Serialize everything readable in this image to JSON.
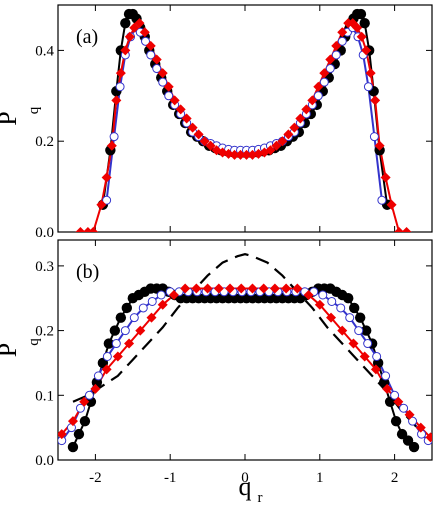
{
  "chart_data": [
    {
      "type": "line",
      "panel_label": "(a)",
      "ylabel": "P",
      "ylabel_sub": "q",
      "xlabel": "",
      "xlim": [
        -2.5,
        2.5
      ],
      "ylim": [
        0.0,
        0.5
      ],
      "y_ticks": [
        "0.0",
        "0.2",
        "0.4"
      ],
      "y_tick_values": [
        0.0,
        0.2,
        0.4
      ],
      "x_tick_values": [
        -2,
        -1,
        0,
        1,
        2
      ],
      "x_tick_labels": [
        "",
        "",
        "",
        "",
        ""
      ],
      "colors": {
        "black": "#000000",
        "blue": "#3333cc",
        "red": "#ee0000",
        "white": "#ffffff"
      },
      "series": [
        {
          "marker": "filled-circle",
          "color": "#000000",
          "x": [
            -1.9,
            -1.8,
            -1.72,
            -1.66,
            -1.6,
            -1.55,
            -1.5,
            -1.45,
            -1.4,
            -1.34,
            -1.28,
            -1.2,
            -1.12,
            -1.04,
            -0.96,
            -0.88,
            -0.8,
            -0.72,
            -0.64,
            -0.56,
            -0.48,
            -0.4,
            -0.32,
            -0.24,
            -0.16,
            -0.08,
            0.0,
            0.08,
            0.16,
            0.24,
            0.32,
            0.4,
            0.48,
            0.56,
            0.64,
            0.72,
            0.8,
            0.88,
            0.96,
            1.04,
            1.12,
            1.2,
            1.28,
            1.34,
            1.4,
            1.45,
            1.5,
            1.55,
            1.6,
            1.66,
            1.72,
            1.8,
            1.9
          ],
          "y": [
            0.06,
            0.18,
            0.31,
            0.4,
            0.46,
            0.48,
            0.48,
            0.47,
            0.45,
            0.43,
            0.4,
            0.37,
            0.34,
            0.31,
            0.28,
            0.26,
            0.24,
            0.22,
            0.21,
            0.2,
            0.19,
            0.185,
            0.18,
            0.178,
            0.176,
            0.175,
            0.175,
            0.175,
            0.176,
            0.178,
            0.18,
            0.185,
            0.19,
            0.2,
            0.21,
            0.22,
            0.24,
            0.26,
            0.28,
            0.31,
            0.34,
            0.37,
            0.4,
            0.43,
            0.45,
            0.47,
            0.48,
            0.48,
            0.46,
            0.4,
            0.31,
            0.18,
            0.06
          ]
        },
        {
          "marker": "open-circle",
          "color": "#3333cc",
          "x": [
            -1.85,
            -1.75,
            -1.67,
            -1.6,
            -1.53,
            -1.46,
            -1.4,
            -1.33,
            -1.26,
            -1.18,
            -1.1,
            -1.02,
            -0.94,
            -0.86,
            -0.78,
            -0.7,
            -0.62,
            -0.54,
            -0.46,
            -0.38,
            -0.3,
            -0.22,
            -0.14,
            -0.06,
            0.02,
            0.1,
            0.18,
            0.26,
            0.34,
            0.42,
            0.5,
            0.58,
            0.66,
            0.74,
            0.82,
            0.9,
            0.98,
            1.06,
            1.14,
            1.22,
            1.3,
            1.37,
            1.44,
            1.51,
            1.58,
            1.65,
            1.73,
            1.83
          ],
          "y": [
            0.07,
            0.21,
            0.32,
            0.39,
            0.43,
            0.45,
            0.44,
            0.42,
            0.39,
            0.36,
            0.33,
            0.3,
            0.28,
            0.26,
            0.24,
            0.22,
            0.21,
            0.2,
            0.195,
            0.19,
            0.185,
            0.182,
            0.18,
            0.18,
            0.18,
            0.18,
            0.182,
            0.185,
            0.19,
            0.195,
            0.2,
            0.21,
            0.22,
            0.24,
            0.26,
            0.28,
            0.3,
            0.33,
            0.36,
            0.39,
            0.42,
            0.44,
            0.45,
            0.43,
            0.39,
            0.32,
            0.21,
            0.07
          ]
        },
        {
          "marker": "filled-diamond",
          "color": "#ee0000",
          "x": [
            -2.2,
            -2.1,
            -2.03,
            -1.92,
            -1.85,
            -1.78,
            -1.72,
            -1.66,
            -1.6,
            -1.54,
            -1.48,
            -1.41,
            -1.34,
            -1.26,
            -1.18,
            -1.1,
            -1.02,
            -0.94,
            -0.86,
            -0.78,
            -0.7,
            -0.62,
            -0.54,
            -0.46,
            -0.38,
            -0.3,
            -0.22,
            -0.14,
            -0.06,
            0.02,
            0.1,
            0.18,
            0.26,
            0.34,
            0.42,
            0.5,
            0.58,
            0.66,
            0.74,
            0.82,
            0.9,
            0.98,
            1.06,
            1.14,
            1.22,
            1.3,
            1.38,
            1.44,
            1.5,
            1.56,
            1.62,
            1.68,
            1.74,
            1.8,
            1.88,
            1.96,
            2.06,
            2.16
          ],
          "y": [
            0.0,
            0.0,
            0.0,
            0.06,
            0.12,
            0.19,
            0.29,
            0.35,
            0.4,
            0.43,
            0.45,
            0.46,
            0.44,
            0.41,
            0.38,
            0.35,
            0.32,
            0.29,
            0.27,
            0.25,
            0.23,
            0.215,
            0.2,
            0.19,
            0.18,
            0.175,
            0.172,
            0.17,
            0.17,
            0.17,
            0.17,
            0.172,
            0.175,
            0.18,
            0.19,
            0.2,
            0.215,
            0.23,
            0.25,
            0.27,
            0.29,
            0.32,
            0.35,
            0.38,
            0.41,
            0.44,
            0.46,
            0.46,
            0.45,
            0.43,
            0.4,
            0.35,
            0.29,
            0.19,
            0.12,
            0.06,
            0.0,
            0.0
          ]
        }
      ]
    },
    {
      "type": "line",
      "panel_label": "(b)",
      "ylabel": "P",
      "ylabel_sub": "q",
      "xlabel": "q",
      "xlabel_sub": "r",
      "xlim": [
        -2.5,
        2.5
      ],
      "ylim": [
        0.0,
        0.34
      ],
      "y_ticks": [
        "0.0",
        "0.1",
        "0.2",
        "0.3"
      ],
      "y_tick_values": [
        0.0,
        0.1,
        0.2,
        0.3
      ],
      "x_ticks": [
        "-2",
        "-1",
        "0",
        "1",
        "2"
      ],
      "x_tick_values": [
        -2,
        -1,
        0,
        1,
        2
      ],
      "series": [
        {
          "marker": "filled-circle",
          "color": "#000000",
          "x": [
            -2.3,
            -2.22,
            -2.14,
            -2.06,
            -1.98,
            -1.9,
            -1.82,
            -1.74,
            -1.66,
            -1.58,
            -1.5,
            -1.42,
            -1.34,
            -1.26,
            -1.18,
            -1.1,
            -1.02,
            -0.94,
            -0.86,
            -0.78,
            -0.7,
            -0.62,
            -0.54,
            -0.46,
            -0.38,
            -0.3,
            -0.22,
            -0.14,
            -0.06,
            0.02,
            0.1,
            0.18,
            0.26,
            0.34,
            0.42,
            0.5,
            0.58,
            0.66,
            0.74,
            0.82,
            0.9,
            0.98,
            1.06,
            1.14,
            1.22,
            1.3,
            1.38,
            1.46,
            1.54,
            1.62,
            1.7,
            1.78,
            1.86,
            1.94,
            2.02,
            2.1,
            2.18,
            2.26
          ],
          "y": [
            0.02,
            0.04,
            0.06,
            0.09,
            0.12,
            0.15,
            0.18,
            0.2,
            0.22,
            0.235,
            0.25,
            0.255,
            0.26,
            0.265,
            0.265,
            0.265,
            0.26,
            0.255,
            0.25,
            0.25,
            0.25,
            0.25,
            0.25,
            0.25,
            0.25,
            0.25,
            0.25,
            0.25,
            0.25,
            0.25,
            0.25,
            0.25,
            0.25,
            0.25,
            0.25,
            0.25,
            0.25,
            0.25,
            0.25,
            0.255,
            0.26,
            0.265,
            0.265,
            0.265,
            0.26,
            0.255,
            0.25,
            0.235,
            0.22,
            0.2,
            0.18,
            0.15,
            0.12,
            0.09,
            0.06,
            0.04,
            0.03,
            0.02
          ]
        },
        {
          "marker": "open-circle",
          "color": "#3333cc",
          "x": [
            -2.45,
            -2.32,
            -2.2,
            -2.08,
            -1.96,
            -1.84,
            -1.72,
            -1.6,
            -1.48,
            -1.36,
            -1.24,
            -1.12,
            -1.0,
            -0.88,
            -0.76,
            -0.64,
            -0.52,
            -0.4,
            -0.28,
            -0.16,
            -0.04,
            0.08,
            0.2,
            0.32,
            0.44,
            0.56,
            0.68,
            0.8,
            0.92,
            1.04,
            1.16,
            1.28,
            1.4,
            1.52,
            1.64,
            1.76,
            1.88,
            2.0,
            2.12,
            2.24,
            2.36,
            2.45
          ],
          "y": [
            0.03,
            0.05,
            0.08,
            0.1,
            0.13,
            0.16,
            0.18,
            0.2,
            0.22,
            0.235,
            0.245,
            0.255,
            0.26,
            0.26,
            0.26,
            0.26,
            0.26,
            0.26,
            0.26,
            0.26,
            0.26,
            0.26,
            0.26,
            0.26,
            0.26,
            0.26,
            0.26,
            0.26,
            0.26,
            0.255,
            0.245,
            0.235,
            0.22,
            0.2,
            0.18,
            0.16,
            0.13,
            0.1,
            0.08,
            0.06,
            0.04,
            0.03
          ]
        },
        {
          "marker": "filled-diamond",
          "color": "#ee0000",
          "x": [
            -2.45,
            -2.3,
            -2.15,
            -2.0,
            -1.85,
            -1.7,
            -1.55,
            -1.4,
            -1.25,
            -1.1,
            -0.95,
            -0.8,
            -0.65,
            -0.5,
            -0.35,
            -0.2,
            -0.05,
            0.1,
            0.25,
            0.4,
            0.55,
            0.7,
            0.85,
            1.0,
            1.15,
            1.3,
            1.45,
            1.6,
            1.75,
            1.9,
            2.05,
            2.2,
            2.35,
            2.48
          ],
          "y": [
            0.04,
            0.06,
            0.09,
            0.11,
            0.14,
            0.16,
            0.18,
            0.2,
            0.22,
            0.24,
            0.255,
            0.265,
            0.265,
            0.265,
            0.265,
            0.265,
            0.265,
            0.265,
            0.265,
            0.265,
            0.265,
            0.265,
            0.255,
            0.24,
            0.22,
            0.2,
            0.18,
            0.16,
            0.14,
            0.11,
            0.09,
            0.07,
            0.05,
            0.035
          ]
        },
        {
          "marker": "dashed-line",
          "color": "#000000",
          "x": [
            -2.3,
            -2.1,
            -1.9,
            -1.7,
            -1.5,
            -1.3,
            -1.1,
            -0.9,
            -0.7,
            -0.5,
            -0.3,
            -0.1,
            0.0,
            0.1,
            0.3,
            0.5,
            0.7,
            0.9,
            1.1,
            1.3,
            1.5,
            1.7,
            1.9,
            2.1,
            2.3
          ],
          "y": [
            0.09,
            0.1,
            0.115,
            0.13,
            0.155,
            0.18,
            0.205,
            0.235,
            0.26,
            0.285,
            0.305,
            0.315,
            0.318,
            0.315,
            0.305,
            0.285,
            0.26,
            0.235,
            0.205,
            0.18,
            0.155,
            0.13,
            0.105,
            0.075,
            0.05
          ]
        }
      ]
    }
  ]
}
